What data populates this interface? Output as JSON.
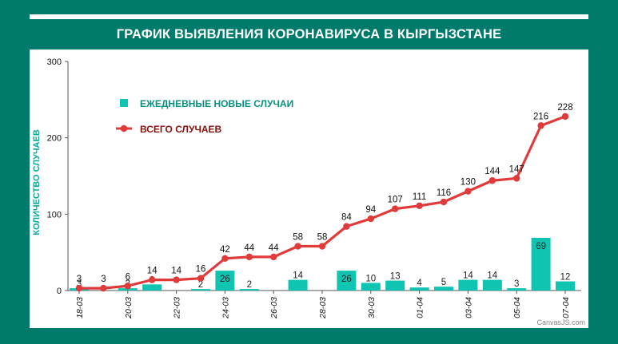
{
  "title": "ГРАФИК ВЫЯВЛЕНИЯ КОРОНАВИРУСА В КЫРГЫЗСТАНЕ",
  "credit": "CanvasJS.com",
  "colors": {
    "background": "#007b6b",
    "bar": "#10c4b2",
    "line": "#e03a3a",
    "ylabel": "#0aa999",
    "legend_bar_text": "#0a8f82",
    "legend_line_text": "#8a1010"
  },
  "chart_data": {
    "type": "bar+line",
    "title": "ГРАФИК ВЫЯВЛЕНИЯ КОРОНАВИРУСА В КЫРГЫЗСТАНЕ",
    "ylabel": "КОЛИЧЕСТВО СЛУЧАЕВ",
    "xlabel": "",
    "ylim": [
      0,
      300
    ],
    "yticks": [
      0,
      100,
      200,
      300
    ],
    "legend_position": "top-left",
    "grid": false,
    "x_tick_labels": [
      "18-03",
      "20-03",
      "22-03",
      "24-03",
      "26-03",
      "28-03",
      "30-03",
      "01-04",
      "03-04",
      "05-04",
      "07-04"
    ],
    "categories": [
      "18-03",
      "19-03",
      "20-03",
      "21-03",
      "22-03",
      "23-03",
      "24-03",
      "25-03",
      "26-03",
      "27-03",
      "28-03",
      "29-03",
      "30-03",
      "31-03",
      "01-04",
      "02-04",
      "03-04",
      "04-04",
      "05-04",
      "06-04",
      "07-04"
    ],
    "series": [
      {
        "name": "ЕЖЕДНЕВНЫЕ НОВЫЕ СЛУЧАИ",
        "type": "bar",
        "values": [
          3,
          0,
          3,
          8,
          0,
          2,
          26,
          2,
          0,
          14,
          0,
          26,
          10,
          13,
          4,
          5,
          14,
          14,
          3,
          69,
          12
        ]
      },
      {
        "name": "ВСЕГО СЛУЧАЕВ",
        "type": "line",
        "values": [
          3,
          3,
          6,
          14,
          14,
          16,
          42,
          44,
          44,
          58,
          58,
          84,
          94,
          107,
          111,
          116,
          130,
          144,
          147,
          216,
          228
        ]
      }
    ]
  }
}
